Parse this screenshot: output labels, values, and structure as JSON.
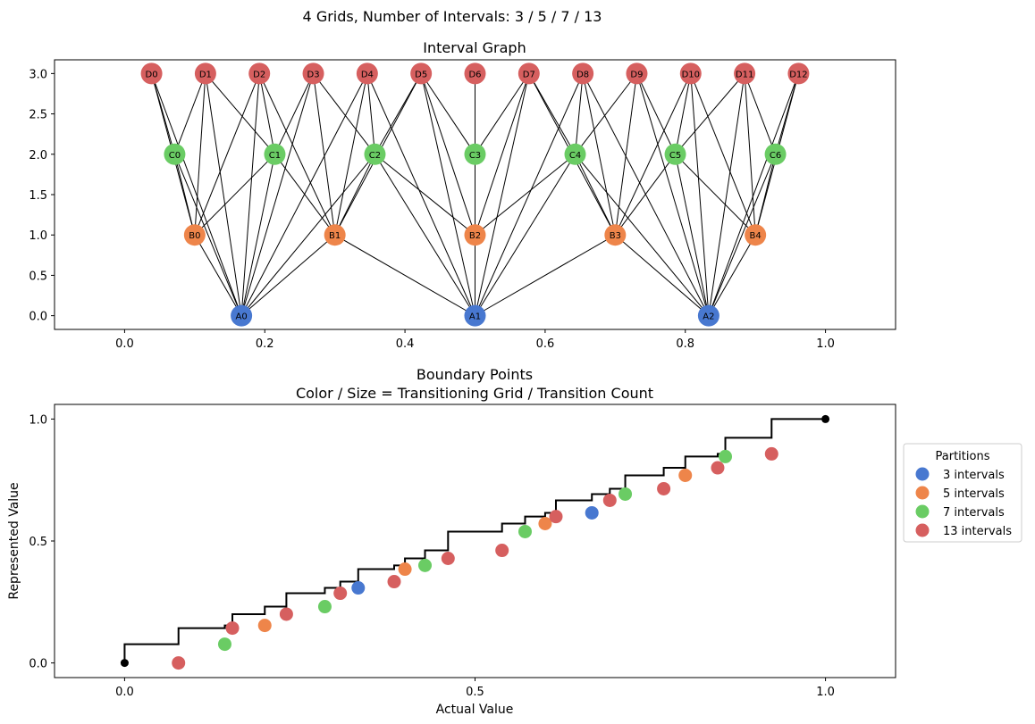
{
  "suptitle": "4 Grids, Number of Intervals: 3 / 5 / 7 / 13",
  "chart_data": [
    {
      "type": "scatter",
      "title": "Interval Graph",
      "xlim": [
        -0.1,
        1.1
      ],
      "ylim": [
        -0.17,
        3.17
      ],
      "xticks": [
        0.0,
        0.2,
        0.4,
        0.6,
        0.8,
        1.0
      ],
      "xtick_labels": [
        "0.0",
        "0.2",
        "0.4",
        "0.6",
        "0.8",
        "1.0"
      ],
      "yticks": [
        0.0,
        0.5,
        1.0,
        1.5,
        2.0,
        2.5,
        3.0
      ],
      "ytick_labels": [
        "0.0",
        "0.5",
        "1.0",
        "1.5",
        "2.0",
        "2.5",
        "3.0"
      ],
      "levels": [
        {
          "prefix": "A",
          "y": 0,
          "color": "#4878d0",
          "labels": [
            "A0",
            "A1",
            "A2"
          ]
        },
        {
          "prefix": "B",
          "y": 1,
          "color": "#ee854a",
          "labels": [
            "B0",
            "B1",
            "B2",
            "B3",
            "B4"
          ]
        },
        {
          "prefix": "C",
          "y": 2,
          "color": "#6acc64",
          "labels": [
            "C0",
            "C1",
            "C2",
            "C3",
            "C4",
            "C5",
            "C6"
          ]
        },
        {
          "prefix": "D",
          "y": 3,
          "color": "#d65f5f",
          "labels": [
            "D0",
            "D1",
            "D2",
            "D3",
            "D4",
            "D5",
            "D6",
            "D7",
            "D8",
            "D9",
            "D10",
            "D11",
            "D12"
          ]
        }
      ],
      "edge_rule": "nodes connected when their intervals overlap"
    },
    {
      "type": "scatter",
      "title": "Boundary Points",
      "subtitle": "Color / Size = Transitioning Grid / Transition Count",
      "xlabel": "Actual Value",
      "ylabel": "Represented Value",
      "xlim": [
        -0.1,
        1.1
      ],
      "ylim": [
        -0.06,
        1.06
      ],
      "xticks": [
        0.0,
        0.5,
        1.0
      ],
      "xtick_labels": [
        "0.0",
        "0.5",
        "1.0"
      ],
      "yticks": [
        0.0,
        0.5,
        1.0
      ],
      "ytick_labels": [
        "0.0",
        "0.5",
        "1.0"
      ],
      "legend": {
        "title": "Partitions",
        "position": "right-outside",
        "entries": [
          {
            "label": "3 intervals",
            "color": "#4878d0"
          },
          {
            "label": "5 intervals",
            "color": "#ee854a"
          },
          {
            "label": "7 intervals",
            "color": "#6acc64"
          },
          {
            "label": "13 intervals",
            "color": "#d65f5f"
          }
        ]
      },
      "step_points": [
        [
          0.0,
          0.0
        ],
        [
          0.0769,
          0.0769
        ],
        [
          0.1429,
          0.1429
        ],
        [
          0.1538,
          0.1538
        ],
        [
          0.2,
          0.2
        ],
        [
          0.2308,
          0.2308
        ],
        [
          0.2857,
          0.2857
        ],
        [
          0.3077,
          0.3077
        ],
        [
          0.3333,
          0.3333
        ],
        [
          0.3846,
          0.3846
        ],
        [
          0.4,
          0.4
        ],
        [
          0.4286,
          0.4286
        ],
        [
          0.4615,
          0.4615
        ],
        [
          0.5385,
          0.5385
        ],
        [
          0.5714,
          0.5714
        ],
        [
          0.6,
          0.6
        ],
        [
          0.6154,
          0.6154
        ],
        [
          0.6667,
          0.6667
        ],
        [
          0.6923,
          0.6923
        ],
        [
          0.7143,
          0.7143
        ],
        [
          0.7692,
          0.7692
        ],
        [
          0.8,
          0.8
        ],
        [
          0.8462,
          0.8462
        ],
        [
          0.8571,
          0.8571
        ],
        [
          0.9231,
          0.9231
        ],
        [
          1.0,
          1.0
        ]
      ],
      "series": [
        {
          "name": "3 intervals",
          "color": "#4878d0",
          "x": [
            0.3333,
            0.6667
          ]
        },
        {
          "name": "5 intervals",
          "color": "#ee854a",
          "x": [
            0.2,
            0.4,
            0.6,
            0.8
          ]
        },
        {
          "name": "7 intervals",
          "color": "#6acc64",
          "x": [
            0.1429,
            0.2857,
            0.4286,
            0.5714,
            0.7143,
            0.8571
          ]
        },
        {
          "name": "13 intervals",
          "color": "#d65f5f",
          "x": [
            0.0769,
            0.1538,
            0.2308,
            0.3077,
            0.3846,
            0.4615,
            0.5385,
            0.6154,
            0.6923,
            0.7692,
            0.8462,
            0.9231
          ]
        }
      ],
      "endpoints": [
        [
          0.0,
          0.0
        ],
        [
          1.0,
          1.0
        ]
      ],
      "endpoint_color": "#000000"
    }
  ]
}
